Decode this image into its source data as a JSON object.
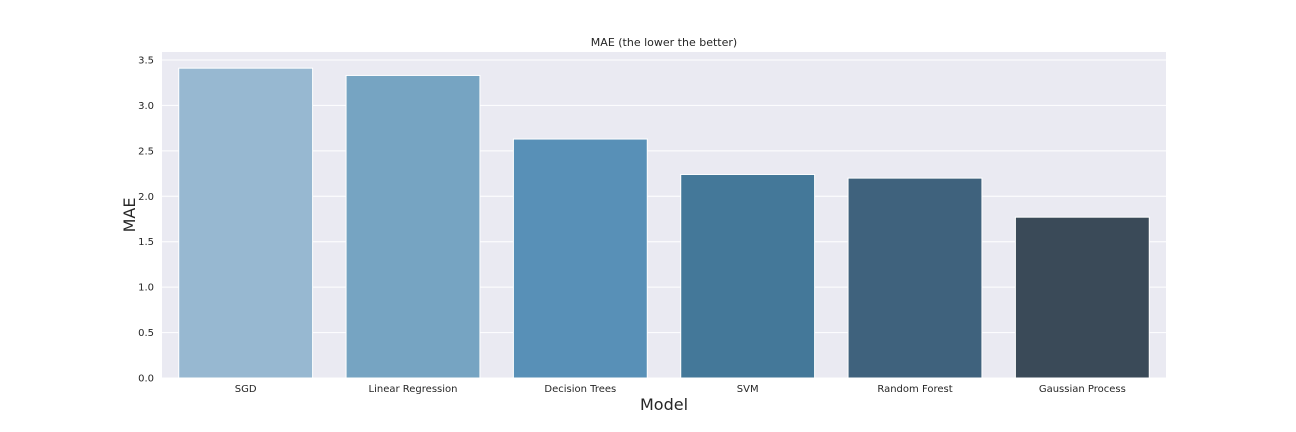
{
  "chart_data": {
    "type": "bar",
    "title": "MAE (the lower the better)",
    "xlabel": "Model",
    "ylabel": "MAE",
    "categories": [
      "SGD",
      "Linear Regression",
      "Decision Trees",
      "SVM",
      "Random Forest",
      "Gaussian Process"
    ],
    "values": [
      3.41,
      3.33,
      2.63,
      2.24,
      2.2,
      1.77
    ],
    "ylim": [
      0,
      3.5
    ],
    "yticks": [
      0.0,
      0.5,
      1.0,
      1.5,
      2.0,
      2.5,
      3.0,
      3.5
    ],
    "ytick_labels": [
      "0.0",
      "0.5",
      "1.0",
      "1.5",
      "2.0",
      "2.5",
      "3.0",
      "3.5"
    ],
    "grid": true,
    "colors": [
      "#97b8d1",
      "#76a4c2",
      "#5890b7",
      "#447899",
      "#3f627d",
      "#3a4a58"
    ],
    "background": "#eaeaf2",
    "gridline_color": "#ffffff"
  }
}
